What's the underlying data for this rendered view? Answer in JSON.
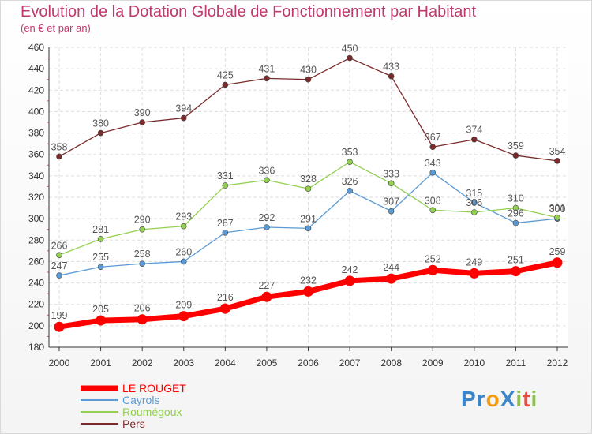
{
  "title": "Evolution de la Dotation Globale de Fonctionnement par Habitant",
  "subtitle": "(en € et par an)",
  "chart_data": {
    "type": "line",
    "x": [
      "2000",
      "2001",
      "2002",
      "2003",
      "2004",
      "2005",
      "2006",
      "2007",
      "2008",
      "2009",
      "2010",
      "2011",
      "2012"
    ],
    "ylim": [
      180,
      460
    ],
    "yticks": [
      180,
      200,
      220,
      240,
      260,
      280,
      300,
      320,
      340,
      360,
      380,
      400,
      420,
      440,
      460
    ],
    "grid": true,
    "legend_position": "bottom-left",
    "series": [
      {
        "name": "LE ROUGET",
        "color": "#ff0000",
        "values": [
          199,
          205,
          206,
          209,
          216,
          227,
          232,
          242,
          244,
          252,
          249,
          251,
          259
        ]
      },
      {
        "name": "Cayrols",
        "color": "#5b9bd5",
        "values": [
          247,
          255,
          258,
          260,
          287,
          292,
          291,
          326,
          307,
          343,
          315,
          296,
          300
        ]
      },
      {
        "name": "Roumégoux",
        "color": "#92d050",
        "values": [
          266,
          281,
          290,
          293,
          331,
          336,
          328,
          353,
          333,
          308,
          306,
          310,
          301
        ]
      },
      {
        "name": "Pers",
        "color": "#7b2b2b",
        "values": [
          358,
          380,
          390,
          394,
          425,
          431,
          430,
          450,
          433,
          367,
          374,
          359,
          354
        ]
      }
    ]
  },
  "logo": {
    "text": "ProXiti",
    "letters": [
      "P",
      "r",
      "o",
      "X",
      "i",
      "t",
      "i"
    ],
    "colors": [
      "#3a86c8",
      "#3a86c8",
      "#f39c12",
      "#3a86c8",
      "#8bc34a",
      "#e74c3c",
      "#8bc34a"
    ]
  }
}
